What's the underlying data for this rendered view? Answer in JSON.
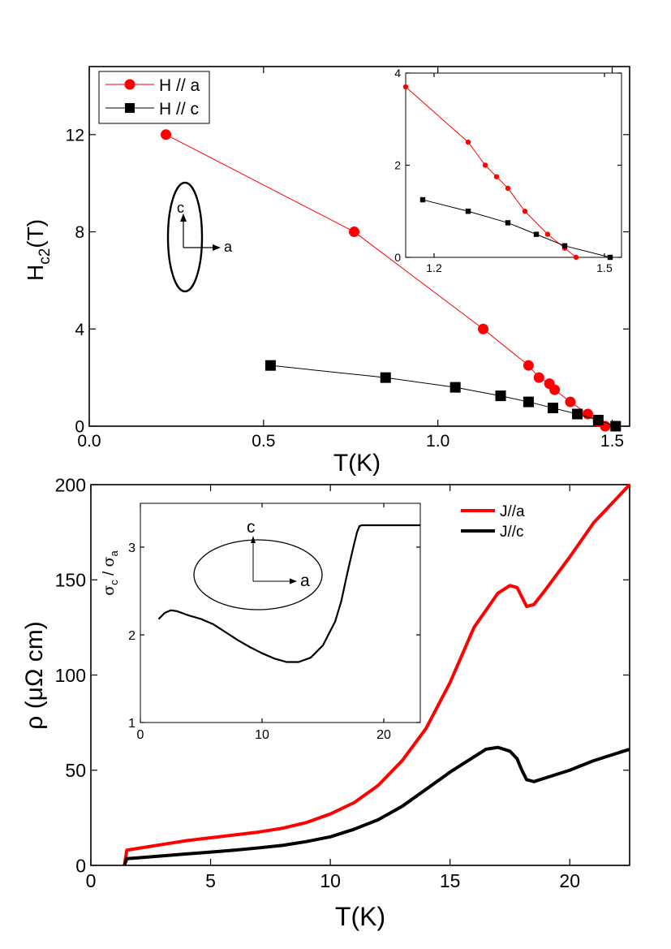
{
  "chart_data": [
    {
      "id": "hc2",
      "type": "line",
      "xlabel": "T(K)",
      "ylabel_main": "H",
      "ylabel_sub": "c2",
      "ylabel_tail": "(T)",
      "xlim": [
        0,
        1.55
      ],
      "ylim": [
        0,
        14.8
      ],
      "xticks": [
        0.0,
        0.5,
        1.0,
        1.5
      ],
      "xtick_labels": [
        "0.0",
        "0.5",
        "1.0",
        "1.5"
      ],
      "yticks": [
        0,
        4,
        8,
        12
      ],
      "ytick_labels": [
        "0",
        "4",
        "8",
        "12"
      ],
      "legend": [
        {
          "label": "H // a",
          "color": "#ff0000",
          "marker": "circle"
        },
        {
          "label": "H // c",
          "color": "#000000",
          "marker": "square"
        }
      ],
      "series": [
        {
          "name": "H // a",
          "color": "#ff0000",
          "marker": "circle",
          "x": [
            0.22,
            0.76,
            1.13,
            1.26,
            1.29,
            1.32,
            1.335,
            1.38,
            1.43,
            1.46,
            1.48
          ],
          "y": [
            12,
            8,
            4,
            2.5,
            2.0,
            1.75,
            1.5,
            1.0,
            0.5,
            0.2,
            0
          ]
        },
        {
          "name": "H // c",
          "color": "#000000",
          "marker": "square",
          "x": [
            0.52,
            0.85,
            1.05,
            1.18,
            1.26,
            1.33,
            1.4,
            1.46,
            1.51
          ],
          "y": [
            2.5,
            2.0,
            1.6,
            1.25,
            1.0,
            0.75,
            0.5,
            0.25,
            0
          ]
        }
      ],
      "annotation": {
        "ellipse_axis_vertical": "c",
        "ellipse_axis_horizontal": "a"
      },
      "inset": {
        "xlim": [
          1.15,
          1.53
        ],
        "ylim": [
          0,
          4
        ],
        "xticks": [
          1.2,
          1.5
        ],
        "xtick_labels": [
          "1.2",
          "1.5"
        ],
        "yticks": [
          0,
          2,
          4
        ],
        "ytick_labels": [
          "0",
          "2",
          "4"
        ],
        "series": [
          {
            "name": "H // a",
            "color": "#ff0000",
            "marker": "circle",
            "x": [
              1.15,
              1.26,
              1.29,
              1.31,
              1.33,
              1.36,
              1.4,
              1.43,
              1.45
            ],
            "y": [
              3.7,
              2.5,
              2.0,
              1.75,
              1.5,
              1.0,
              0.5,
              0.2,
              0
            ]
          },
          {
            "name": "H // c",
            "color": "#000000",
            "marker": "square",
            "x": [
              1.18,
              1.26,
              1.33,
              1.38,
              1.43,
              1.51
            ],
            "y": [
              1.25,
              1.0,
              0.75,
              0.5,
              0.25,
              0
            ]
          }
        ]
      }
    },
    {
      "id": "rho",
      "type": "line",
      "xlabel": "T(K)",
      "ylabel": "ρ (μΩ cm)",
      "xlim": [
        0,
        22.5
      ],
      "ylim": [
        0,
        200
      ],
      "xticks": [
        0,
        5,
        10,
        15,
        20
      ],
      "xtick_labels": [
        "0",
        "5",
        "10",
        "15",
        "20"
      ],
      "yticks": [
        0,
        50,
        100,
        150,
        200
      ],
      "ytick_labels": [
        "0",
        "50",
        "100",
        "150",
        "200"
      ],
      "legend": [
        {
          "label": "J//a",
          "color": "#ff0000"
        },
        {
          "label": "J//c",
          "color": "#000000"
        }
      ],
      "series": [
        {
          "name": "J//a",
          "color": "#ff0000",
          "x": [
            1.4,
            1.5,
            2,
            3,
            4,
            5,
            6,
            7,
            8,
            9,
            10,
            11,
            12,
            13,
            14,
            15,
            16,
            17,
            17.5,
            17.8,
            18.0,
            18.2,
            18.5,
            19,
            20,
            21,
            22.5
          ],
          "y": [
            0,
            8,
            9,
            11,
            13,
            14.5,
            16,
            17.5,
            19.5,
            22.5,
            27,
            33,
            42,
            55,
            72,
            96,
            125,
            143,
            147,
            146,
            141,
            136,
            137,
            145,
            162,
            180,
            200
          ]
        },
        {
          "name": "J//c",
          "color": "#000000",
          "x": [
            1.4,
            1.5,
            2,
            3,
            4,
            5,
            6,
            7,
            8,
            9,
            10,
            11,
            12,
            13,
            14,
            15,
            16,
            16.5,
            17,
            17.5,
            17.8,
            18.0,
            18.2,
            18.5,
            19,
            20,
            21,
            22.5
          ],
          "y": [
            0,
            3.5,
            4,
            5,
            6,
            7,
            8,
            9.2,
            10.5,
            12.5,
            15,
            19,
            24,
            31,
            40,
            49,
            57,
            61,
            62,
            60,
            56,
            50,
            45,
            44,
            46,
            50,
            55,
            61
          ]
        }
      ],
      "inset": {
        "ylabel_num": "σ",
        "ylabel_num_sub": "c",
        "ylabel_sep": " / ",
        "ylabel_den": "σ",
        "ylabel_den_sub": "a",
        "xlim": [
          0,
          23
        ],
        "ylim": [
          1,
          3.5
        ],
        "xticks": [
          0,
          10,
          20
        ],
        "xtick_labels": [
          "0",
          "10",
          "20"
        ],
        "yticks": [
          1,
          2,
          3
        ],
        "ytick_labels": [
          "1",
          "2",
          "3"
        ],
        "series": [
          {
            "name": "σc/σa",
            "color": "#000000",
            "x": [
              1.5,
              2,
              2.5,
              3,
              4,
              5,
              6,
              7,
              8,
              9,
              10,
              11,
              12,
              13,
              14,
              15,
              16,
              16.5,
              17,
              17.5,
              17.8,
              18.0,
              18.2,
              18.5,
              19,
              20,
              21,
              23
            ],
            "y": [
              2.18,
              2.25,
              2.28,
              2.27,
              2.22,
              2.18,
              2.12,
              2.03,
              1.94,
              1.86,
              1.79,
              1.73,
              1.69,
              1.69,
              1.74,
              1.88,
              2.15,
              2.38,
              2.7,
              3.0,
              3.17,
              3.24,
              3.25,
              3.25,
              3.25,
              3.25,
              3.25,
              3.25
            ]
          }
        ],
        "annotation": {
          "ellipse_axis_vertical": "c",
          "ellipse_axis_horizontal": "a"
        }
      }
    }
  ]
}
